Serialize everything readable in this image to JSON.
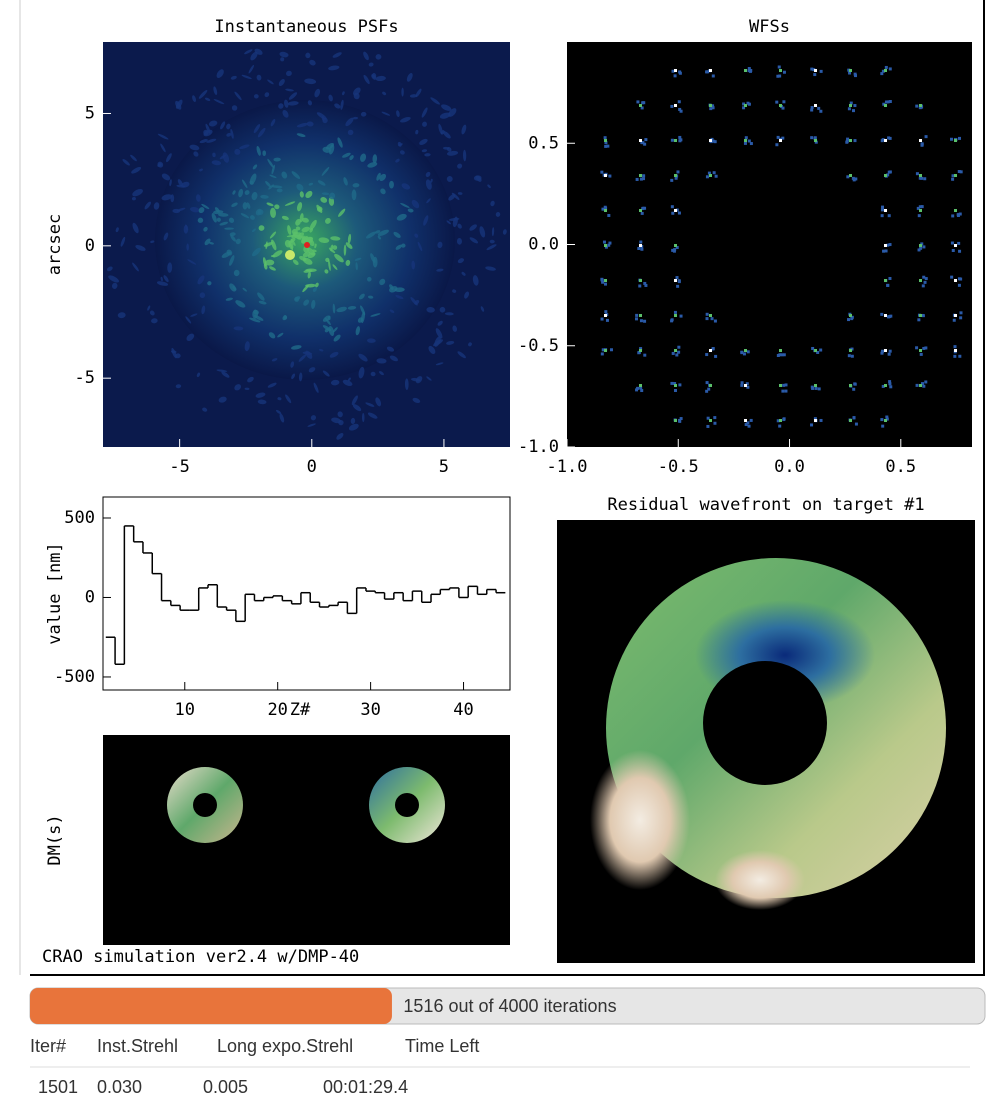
{
  "chart_data": [
    {
      "type": "image",
      "title": "Instantaneous PSFs",
      "ylabel": "arcsec",
      "xlim": [
        -7.9,
        7.5
      ],
      "ylim": [
        -7.6,
        7.7
      ],
      "xticks": [
        -5,
        0,
        5
      ],
      "yticks": [
        -5,
        0,
        5
      ]
    },
    {
      "type": "image",
      "title": "WFSs",
      "xlim": [
        -1,
        0.82
      ],
      "ylim": [
        -1,
        1
      ],
      "xticks": [
        {
          "value": -1,
          "label": "-1.0"
        },
        {
          "value": -0.5,
          "label": "-0.5"
        },
        {
          "value": 0,
          "label": "0.0"
        },
        {
          "value": 0.5,
          "label": "0.5"
        }
      ],
      "yticks": [
        {
          "value": -1,
          "label": "-1.0"
        },
        {
          "value": -0.5,
          "label": "-0.5"
        },
        {
          "value": 0,
          "label": "0.0"
        },
        {
          "value": 0.5,
          "label": "0.5"
        }
      ]
    },
    {
      "type": "step",
      "xlabel": "Z#",
      "ylabel": "value [nm]",
      "x": [
        2,
        3,
        4,
        5,
        6,
        7,
        8,
        9,
        10,
        11,
        12,
        13,
        14,
        15,
        16,
        17,
        18,
        19,
        20,
        21,
        22,
        23,
        24,
        25,
        26,
        27,
        28,
        29,
        30,
        31,
        32,
        33,
        34,
        35,
        36,
        37,
        38,
        39,
        40,
        41,
        42,
        43,
        44
      ],
      "values": [
        -250,
        -420,
        450,
        350,
        280,
        150,
        -20,
        -50,
        -80,
        -80,
        60,
        80,
        -60,
        -80,
        -150,
        20,
        -20,
        0,
        10,
        -20,
        -40,
        30,
        -30,
        -60,
        -50,
        -30,
        -100,
        60,
        40,
        30,
        -10,
        30,
        -20,
        40,
        -30,
        20,
        50,
        60,
        0,
        70,
        20,
        50,
        30
      ],
      "xlim": [
        1.2,
        45
      ],
      "ylim": [
        -582,
        632
      ],
      "xticks": [
        10,
        20,
        30,
        40
      ],
      "yticks": [
        -500,
        0,
        500
      ]
    },
    {
      "type": "image",
      "title": "Residual wavefront on target #1"
    },
    {
      "type": "image",
      "ylabel": "DM(s)"
    }
  ],
  "caption": "CRAO simulation ver2.4 w/DMP-40",
  "progress": {
    "value": 1516,
    "max": 4000,
    "label": "1516 out of 4000 iterations"
  },
  "table": {
    "columns": [
      "Iter#",
      "Inst.Strehl",
      "Long expo.Strehl",
      "Time Left"
    ],
    "rows": [
      [
        "1501",
        "0.030",
        "0.005",
        "00:01:29.4"
      ]
    ]
  }
}
